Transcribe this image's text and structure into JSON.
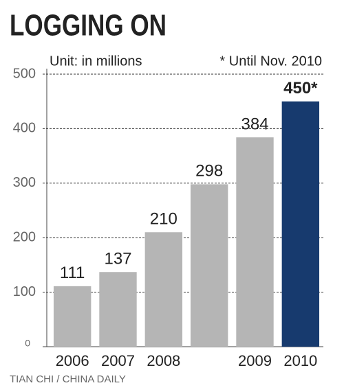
{
  "chart_data": {
    "type": "bar",
    "title": "LOGGING ON",
    "subtitle": "Unit: in millions",
    "annotation": "* Until Nov. 2010",
    "source": "TIAN CHI / CHINA DAILY",
    "categories": [
      "2006",
      "2007",
      "2008",
      null,
      "2009",
      "2010"
    ],
    "values": [
      111,
      137,
      210,
      298,
      384,
      450
    ],
    "value_labels": [
      "111",
      "137",
      "210",
      "298",
      "384",
      "450*"
    ],
    "colors": [
      "#b5b5b5",
      "#b5b5b5",
      "#b5b5b5",
      "#b5b5b5",
      "#b5b5b5",
      "#173a6e"
    ],
    "ylim": [
      0,
      500
    ],
    "yticks": [
      0,
      100,
      200,
      300,
      400,
      500
    ],
    "grid": true
  }
}
